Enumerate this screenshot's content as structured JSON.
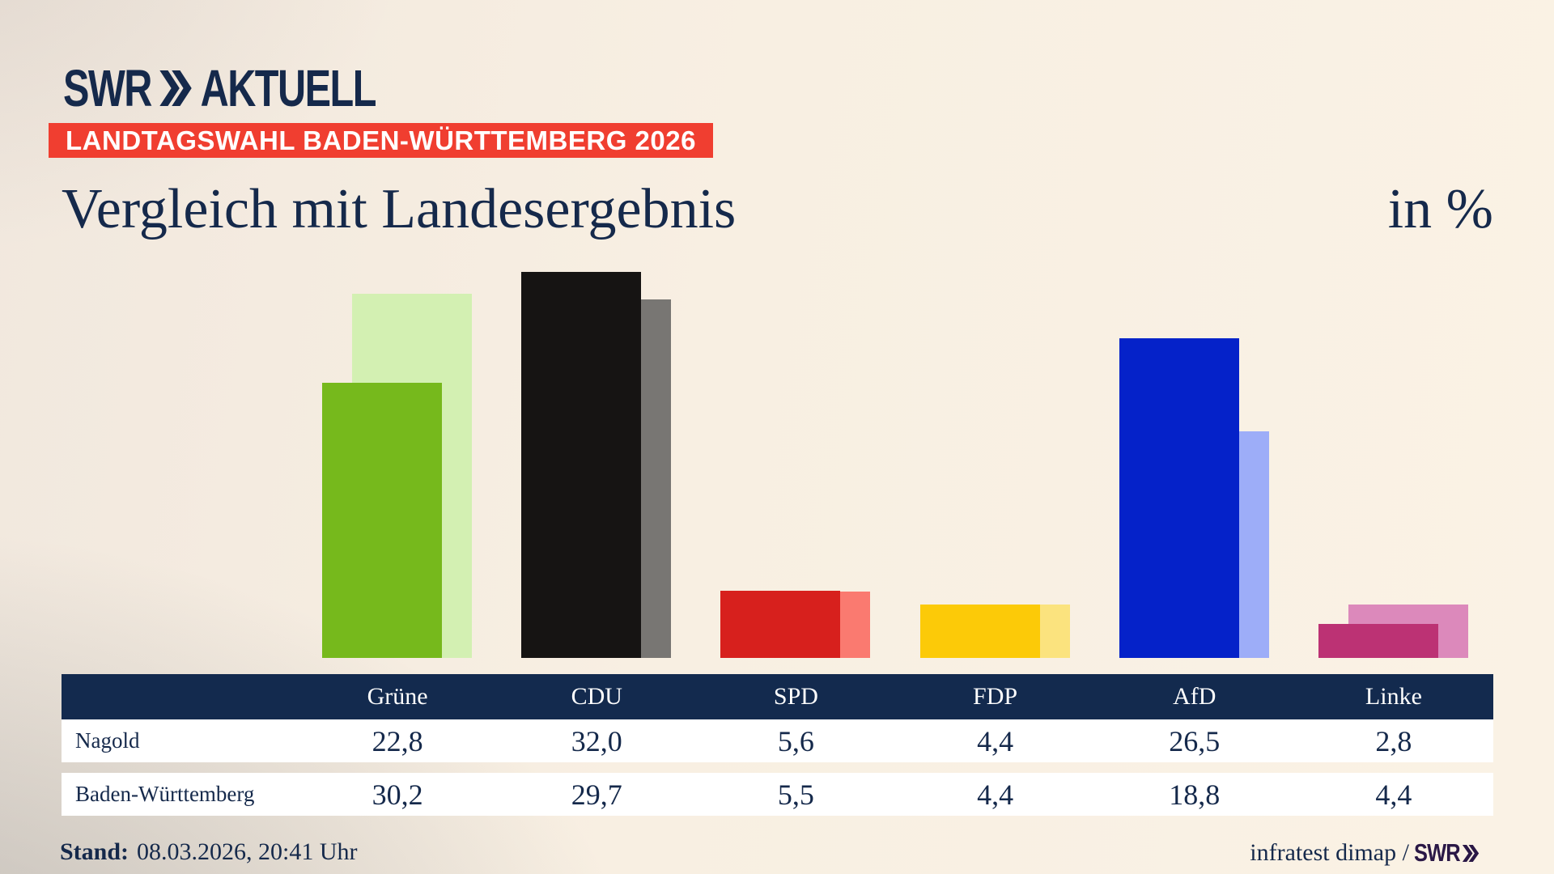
{
  "brand": {
    "name": "SWR",
    "suffix": "AKTUELL"
  },
  "badge": {
    "text": "LANDTAGSWAHL BADEN-WÜRTTEMBERG 2026",
    "bg": "#f03e30"
  },
  "title": "Vergleich mit Landesergebnis",
  "unit_label": "in %",
  "chart_data": {
    "type": "bar",
    "categories": [
      "Grüne",
      "CDU",
      "SPD",
      "FDP",
      "AfD",
      "Linke"
    ],
    "series": [
      {
        "name": "Nagold",
        "role": "front",
        "values": [
          22.8,
          32.0,
          5.6,
          4.4,
          26.5,
          2.8
        ],
        "colors": [
          "#76b91c",
          "#161413",
          "#d7201d",
          "#fcca08",
          "#0522c9",
          "#bc3274"
        ]
      },
      {
        "name": "Baden-Württemberg",
        "role": "back",
        "values": [
          30.2,
          29.7,
          5.5,
          4.4,
          18.8,
          4.4
        ],
        "colors": [
          "#d3f0b2",
          "#787673",
          "#fa7a70",
          "#fbe37e",
          "#9dadf8",
          "#dc89bb"
        ]
      }
    ],
    "unit": "%",
    "ylim": [
      0,
      38
    ],
    "grid": false,
    "legend": "table-below",
    "value_format": "comma-decimal"
  },
  "table": {
    "columns": [
      "Grüne",
      "CDU",
      "SPD",
      "FDP",
      "AfD",
      "Linke"
    ],
    "rows": [
      {
        "label": "Nagold",
        "values": [
          "22,8",
          "32,0",
          "5,6",
          "4,4",
          "26,5",
          "2,8"
        ]
      },
      {
        "label": "Baden-Württemberg",
        "values": [
          "30,2",
          "29,7",
          "5,5",
          "4,4",
          "18,8",
          "4,4"
        ]
      }
    ]
  },
  "footer": {
    "stand_label": "Stand:",
    "stand_value": "08.03.2026, 20:41 Uhr",
    "source_text": "infratest dimap / ",
    "source_brand": "SWR"
  },
  "colors": {
    "navy_text": "#15294b",
    "badge_red": "#f03e30",
    "table_header_bg": "#132a4e",
    "footer_brand_purple": "#2a1846",
    "background_cream": "#f8efe2",
    "background_gray": "#cfcdc9"
  }
}
